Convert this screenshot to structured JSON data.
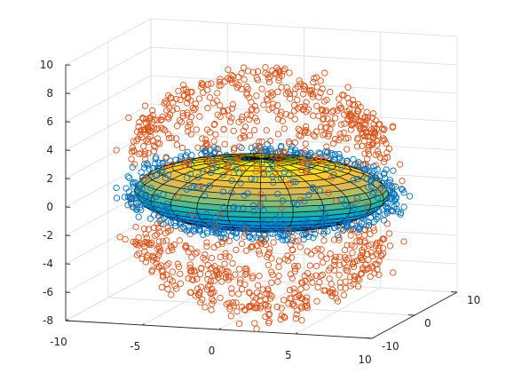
{
  "chart_data": {
    "type": "scatter3d-surface",
    "title": "",
    "xlabel": "",
    "ylabel": "",
    "zlabel": "",
    "xlim": [
      -10,
      10
    ],
    "ylim": [
      -10,
      10
    ],
    "zlim": [
      -8,
      10
    ],
    "x_ticks": [
      -10,
      -5,
      0,
      5,
      10
    ],
    "y_ticks": [
      -10,
      0,
      10
    ],
    "z_ticks": [
      -8,
      -6,
      -4,
      -2,
      0,
      2,
      4,
      6,
      8,
      10
    ],
    "x_tick_labels": [
      "-10",
      "-5",
      "0",
      "5",
      "10"
    ],
    "y_tick_labels": [
      "-10",
      "0",
      "10"
    ],
    "z_tick_labels": [
      "-8",
      "-6",
      "-4",
      "-2",
      "0",
      "2",
      "4",
      "6",
      "8",
      "10"
    ],
    "grid": true,
    "surface": {
      "shape": "ellipsoid",
      "center": [
        0,
        0,
        0
      ],
      "radii": [
        8,
        8,
        2.4
      ],
      "colormap": "parula",
      "edge_color": "#000000"
    },
    "series": [
      {
        "marker": "circle",
        "color": "#0072BD",
        "shape": "ellipsoid-shell",
        "center": [
          0,
          0,
          0
        ],
        "radii": [
          8.6,
          8.6,
          2.8
        ],
        "count": 700
      },
      {
        "marker": "circle",
        "color": "#D95319",
        "shape": "sphere-shell",
        "center": [
          0,
          0,
          0
        ],
        "radii": [
          8.5,
          8.5,
          8.5
        ],
        "count": 1100
      }
    ]
  }
}
